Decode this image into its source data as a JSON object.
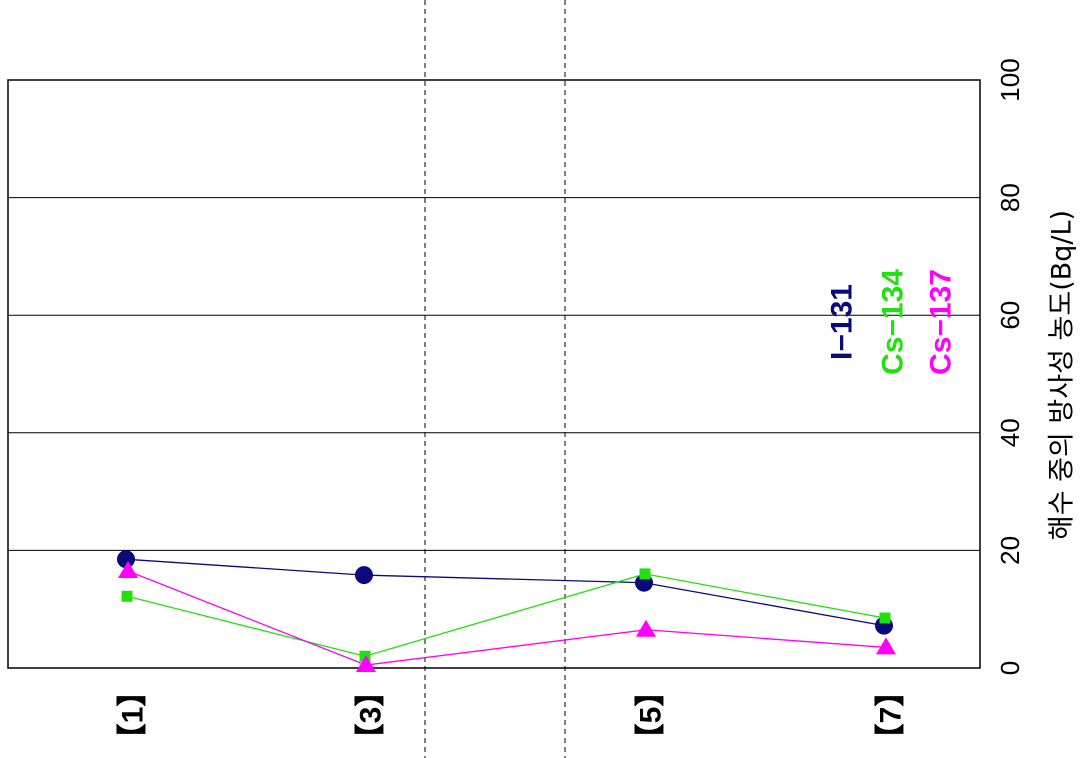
{
  "chart_data": {
    "type": "line",
    "orientation": "rotated-90-ccw",
    "categories": [
      "【1】",
      "【3】",
      "【5】",
      "【7】"
    ],
    "ylabel": "해수 중의 방사성 농도(Bq/L)",
    "ylim": [
      0,
      100
    ],
    "yticks": [
      0,
      20,
      40,
      60,
      80,
      100
    ],
    "grid": true,
    "legend_position": "right-middle",
    "series": [
      {
        "name": "I−131",
        "color": "#0a0a7a",
        "marker": "circle",
        "values": [
          18.5,
          15.8,
          14.5,
          7.2
        ]
      },
      {
        "name": "Cs−134",
        "color": "#22e010",
        "marker": "square",
        "values": [
          12.2,
          2.0,
          16.0,
          8.5
        ]
      },
      {
        "name": "Cs−137",
        "color": "#ff00ff",
        "marker": "triangle",
        "values": [
          16.5,
          0.5,
          6.5,
          3.5
        ]
      }
    ]
  }
}
